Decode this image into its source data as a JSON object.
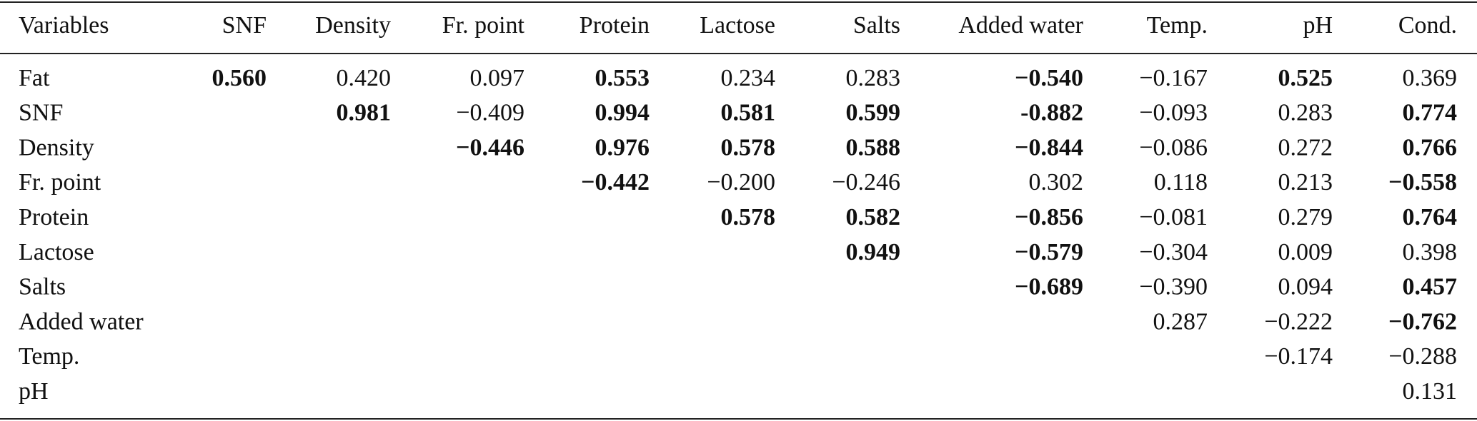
{
  "table": {
    "header": [
      "Variables",
      "SNF",
      "Density",
      "Fr. point",
      "Protein",
      "Lactose",
      "Salts",
      "Added water",
      "Temp.",
      "pH",
      "Cond."
    ],
    "rows": [
      {
        "label": "Fat",
        "cells": [
          {
            "text": "0.560",
            "bold": true
          },
          {
            "text": "0.420",
            "bold": false
          },
          {
            "text": "0.097",
            "bold": false
          },
          {
            "text": "0.553",
            "bold": true
          },
          {
            "text": "0.234",
            "bold": false
          },
          {
            "text": "0.283",
            "bold": false
          },
          {
            "text": "−0.540",
            "bold": true
          },
          {
            "text": "−0.167",
            "bold": false
          },
          {
            "text": "0.525",
            "bold": true
          },
          {
            "text": "0.369",
            "bold": false
          }
        ]
      },
      {
        "label": "SNF",
        "cells": [
          null,
          {
            "text": "0.981",
            "bold": true
          },
          {
            "text": "−0.409",
            "bold": false
          },
          {
            "text": "0.994",
            "bold": true
          },
          {
            "text": "0.581",
            "bold": true
          },
          {
            "text": "0.599",
            "bold": true
          },
          {
            "text": "-0.882",
            "bold": true
          },
          {
            "text": "−0.093",
            "bold": false
          },
          {
            "text": "0.283",
            "bold": false
          },
          {
            "text": "0.774",
            "bold": true
          }
        ]
      },
      {
        "label": "Density",
        "cells": [
          null,
          null,
          {
            "text": "−0.446",
            "bold": true
          },
          {
            "text": "0.976",
            "bold": true
          },
          {
            "text": "0.578",
            "bold": true
          },
          {
            "text": "0.588",
            "bold": true
          },
          {
            "text": "−0.844",
            "bold": true
          },
          {
            "text": "−0.086",
            "bold": false
          },
          {
            "text": "0.272",
            "bold": false
          },
          {
            "text": "0.766",
            "bold": true
          }
        ]
      },
      {
        "label": "Fr. point",
        "cells": [
          null,
          null,
          null,
          {
            "text": "−0.442",
            "bold": true
          },
          {
            "text": "−0.200",
            "bold": false
          },
          {
            "text": "−0.246",
            "bold": false
          },
          {
            "text": "0.302",
            "bold": false
          },
          {
            "text": "0.118",
            "bold": false
          },
          {
            "text": "0.213",
            "bold": false
          },
          {
            "text": "−0.558",
            "bold": true
          }
        ]
      },
      {
        "label": "Protein",
        "cells": [
          null,
          null,
          null,
          null,
          {
            "text": "0.578",
            "bold": true
          },
          {
            "text": "0.582",
            "bold": true
          },
          {
            "text": "−0.856",
            "bold": true
          },
          {
            "text": "−0.081",
            "bold": false
          },
          {
            "text": "0.279",
            "bold": false
          },
          {
            "text": "0.764",
            "bold": true
          }
        ]
      },
      {
        "label": "Lactose",
        "cells": [
          null,
          null,
          null,
          null,
          null,
          {
            "text": "0.949",
            "bold": true
          },
          {
            "text": "−0.579",
            "bold": true
          },
          {
            "text": "−0.304",
            "bold": false
          },
          {
            "text": "0.009",
            "bold": false
          },
          {
            "text": "0.398",
            "bold": false
          }
        ]
      },
      {
        "label": "Salts",
        "cells": [
          null,
          null,
          null,
          null,
          null,
          null,
          {
            "text": "−0.689",
            "bold": true
          },
          {
            "text": "−0.390",
            "bold": false
          },
          {
            "text": "0.094",
            "bold": false
          },
          {
            "text": "0.457",
            "bold": true
          }
        ]
      },
      {
        "label": "Added water",
        "cells": [
          null,
          null,
          null,
          null,
          null,
          null,
          null,
          {
            "text": "0.287",
            "bold": false
          },
          {
            "text": "−0.222",
            "bold": false
          },
          {
            "text": "−0.762",
            "bold": true
          }
        ]
      },
      {
        "label": "Temp.",
        "cells": [
          null,
          null,
          null,
          null,
          null,
          null,
          null,
          null,
          {
            "text": "−0.174",
            "bold": false
          },
          {
            "text": "−0.288",
            "bold": false
          }
        ]
      },
      {
        "label": "pH",
        "cells": [
          null,
          null,
          null,
          null,
          null,
          null,
          null,
          null,
          null,
          {
            "text": "0.131",
            "bold": false
          }
        ]
      }
    ]
  }
}
